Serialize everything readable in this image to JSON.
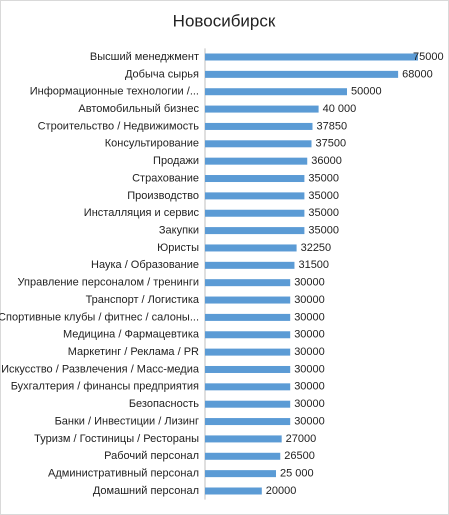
{
  "chart_data": {
    "type": "bar",
    "orientation": "horizontal",
    "title": "Новосибирск",
    "categories": [
      "Высший менеджмент",
      "Добыча сырья",
      "Информационные технологии /...",
      "Автомобильный бизнес",
      "Строительство / Недвижимость",
      "Консультирование",
      "Продажи",
      "Страхование",
      "Производство",
      "Инсталляция и сервис",
      "Закупки",
      "Юристы",
      "Наука / Образование",
      "Управление персоналом / тренинги",
      "Транспорт / Логистика",
      "Спортивные клубы / фитнес / салоны...",
      "Медицина / Фармацевтика",
      "Маркетинг / Реклама / PR",
      "Искусство / Развлечения / Масс-медиа",
      "Бухгалтерия / финансы предприятия",
      "Безопасность",
      "Банки / Инвестиции / Лизинг",
      "Туризм / Гостиницы / Рестораны",
      "Рабочий персонал",
      "Административный персонал",
      "Домашний персонал"
    ],
    "values": [
      75000,
      68000,
      50000,
      40000,
      37850,
      37500,
      36000,
      35000,
      35000,
      35000,
      35000,
      32250,
      31500,
      30000,
      30000,
      30000,
      30000,
      30000,
      30000,
      30000,
      30000,
      30000,
      27000,
      26500,
      25000,
      20000
    ],
    "value_labels": [
      "75000",
      "68000",
      "50000",
      "40 000",
      "37850",
      "37500",
      "36000",
      "35000",
      "35000",
      "35000",
      "35000",
      "32250",
      "31500",
      "30000",
      "30000",
      "30000",
      "30000",
      "30000",
      "30000",
      "30000",
      "30000",
      "30000",
      "27000",
      "26500",
      "25 000",
      "20000"
    ],
    "color": "#5b9bd5"
  }
}
